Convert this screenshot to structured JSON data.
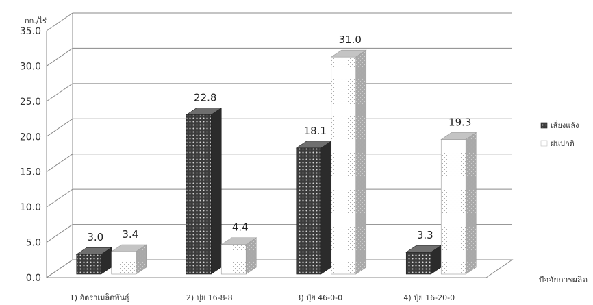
{
  "chart_data": {
    "type": "bar",
    "title": "",
    "ylabel": "กก./ไร่",
    "xlabel": "ปัจจัยการผลิต",
    "ylim": [
      0,
      35
    ],
    "yticks": [
      "0.0",
      "5.0",
      "10.0",
      "15.0",
      "20.0",
      "25.0",
      "30.0",
      "35.0"
    ],
    "categories": [
      "1) อัตราเมล็ดพันธุ์",
      "2) ปุ๋ย 16-8-8",
      "3) ปุ๋ย 46-0-0",
      "4) ปุ๋ย 16-20-0"
    ],
    "series": [
      {
        "name": "เสี่ยงแล้ง",
        "values": [
          3.0,
          22.8,
          18.1,
          3.3
        ],
        "labels": [
          "3.0",
          "22.8",
          "18.1",
          "3.3"
        ],
        "pattern": "dark-dotted",
        "color": "#3a3a3a"
      },
      {
        "name": "ฝนปกติ",
        "values": [
          3.4,
          4.4,
          31.0,
          19.3
        ],
        "labels": [
          "3.4",
          "4.4",
          "31.0",
          "19.3"
        ],
        "pattern": "light-dotted",
        "color": "#ffffff"
      }
    ],
    "grid": true,
    "legend_position": "right",
    "style": "3d-clustered-column"
  }
}
